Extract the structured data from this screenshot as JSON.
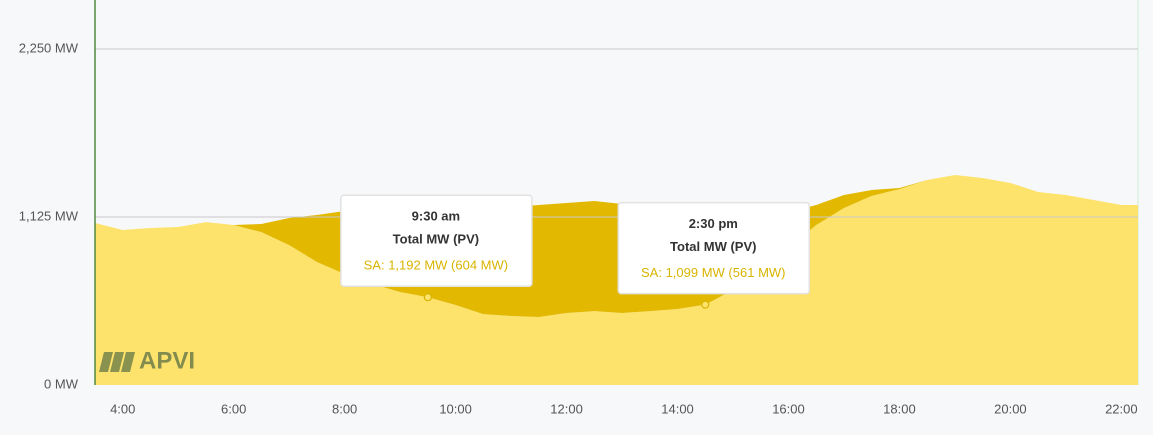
{
  "chart_data": {
    "type": "stacked-area",
    "x": [
      3.5,
      4,
      4.5,
      5,
      5.5,
      6,
      6.5,
      7,
      7.5,
      8,
      8.5,
      9,
      9.5,
      10,
      10.5,
      11,
      11.5,
      12,
      12.5,
      13,
      13.5,
      14,
      14.5,
      15,
      15.5,
      16,
      16.5,
      17,
      17.5,
      18,
      18.5,
      19,
      19.5,
      20,
      20.5,
      21,
      21.5,
      22,
      22.3
    ],
    "series": [
      {
        "color": "#fde36b",
        "values": [
          1085,
          1038,
          1051,
          1058,
          1091,
          1071,
          1024,
          937,
          824,
          743,
          676,
          623,
          588,
          536,
          475,
          462,
          455,
          482,
          495,
          482,
          495,
          509,
          538,
          636,
          770,
          917,
          1071,
          1185,
          1266,
          1312,
          1373,
          1406,
          1386,
          1353,
          1292,
          1272,
          1239,
          1205,
          1205
        ]
      },
      {
        "color": "#e2b900",
        "values": [
          0,
          0,
          0,
          0,
          0,
          0,
          54,
          181,
          314,
          422,
          509,
          576,
          604,
          656,
          710,
          730,
          750,
          737,
          737,
          730,
          704,
          663,
          561,
          435,
          321,
          241,
          134,
          87,
          40,
          7,
          0,
          0,
          0,
          0,
          0,
          0,
          0,
          0,
          0
        ]
      }
    ],
    "xlim": [
      3.5,
      22.3
    ],
    "xticks": [
      {
        "value": 4,
        "label": "4:00"
      },
      {
        "value": 6,
        "label": "6:00"
      },
      {
        "value": 8,
        "label": "8:00"
      },
      {
        "value": 10,
        "label": "10:00"
      },
      {
        "value": 12,
        "label": "12:00"
      },
      {
        "value": 14,
        "label": "14:00"
      },
      {
        "value": 16,
        "label": "16:00"
      },
      {
        "value": 18,
        "label": "18:00"
      },
      {
        "value": 20,
        "label": "20:00"
      },
      {
        "value": 22,
        "label": "22:00"
      }
    ],
    "ylim": [
      0,
      2578
    ],
    "yticks": [
      {
        "value": 0,
        "label": "0 MW"
      },
      {
        "value": 1125,
        "label": "1,125 MW"
      },
      {
        "value": 2250,
        "label": "2,250 MW"
      }
    ],
    "grid": true,
    "logo": "APVI",
    "tooltips": [
      {
        "title": "9:30 am",
        "subtitle": "Total MW (PV)",
        "text": "SA: 1,192 MW (604 MW)"
      },
      {
        "title": "2:30 pm",
        "subtitle": "Total MW (PV)",
        "text": "SA: 1,099 MW (561 MW)"
      }
    ]
  }
}
